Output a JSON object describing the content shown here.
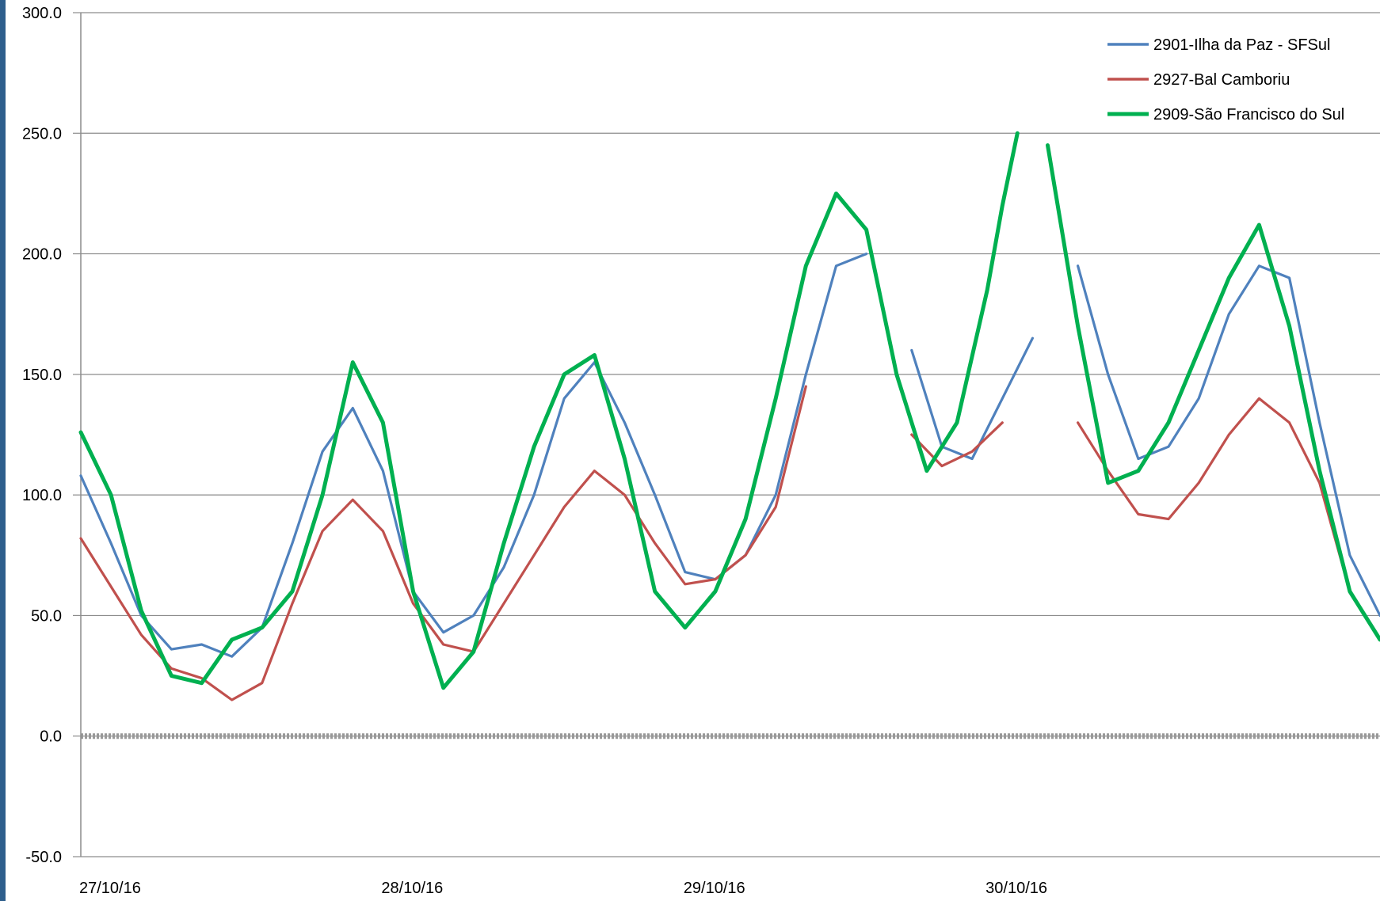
{
  "chart_data": {
    "type": "line",
    "title": "",
    "xlabel": "",
    "ylabel": "",
    "ylim": [
      -50,
      300
    ],
    "yticks": [
      -50,
      0,
      50,
      100,
      150,
      200,
      250,
      300
    ],
    "ytick_labels": [
      "-50.0",
      "0.0",
      "50.0",
      "100.0",
      "150.0",
      "200.0",
      "250.0",
      "300.0"
    ],
    "xlim": [
      0,
      4.3
    ],
    "xtick_labels": [
      "27/10/16",
      "28/10/16",
      "29/10/16",
      "30/10/16"
    ],
    "x_unit": "days from 27/10/16 00:00",
    "grid": true,
    "legend_position": "top-right",
    "reference_line": {
      "y": 0,
      "style": "dashed",
      "color": "#999999"
    },
    "series": [
      {
        "name": "2901-Ilha da Paz - SFSul",
        "color": "#4f81bd",
        "points": [
          [
            0.0,
            108
          ],
          [
            0.1,
            80
          ],
          [
            0.2,
            50
          ],
          [
            0.3,
            36
          ],
          [
            0.4,
            38
          ],
          [
            0.5,
            33
          ],
          [
            0.6,
            45
          ],
          [
            0.7,
            80
          ],
          [
            0.8,
            118
          ],
          [
            0.9,
            136
          ],
          [
            1.0,
            110
          ],
          [
            1.1,
            60
          ],
          [
            1.2,
            43
          ],
          [
            1.3,
            50
          ],
          [
            1.4,
            70
          ],
          [
            1.5,
            100
          ],
          [
            1.6,
            140
          ],
          [
            1.7,
            155
          ],
          [
            1.8,
            130
          ],
          [
            1.9,
            100
          ],
          [
            2.0,
            68
          ],
          [
            2.1,
            65
          ],
          [
            2.2,
            75
          ],
          [
            2.3,
            100
          ],
          [
            2.4,
            150
          ],
          [
            2.5,
            195
          ],
          [
            2.6,
            200
          ],
          [
            2.65,
            null
          ],
          [
            2.75,
            160
          ],
          [
            2.85,
            120
          ],
          [
            2.95,
            115
          ],
          [
            3.05,
            140
          ],
          [
            3.15,
            165
          ],
          [
            3.25,
            null
          ],
          [
            3.3,
            195
          ],
          [
            3.4,
            150
          ],
          [
            3.5,
            115
          ],
          [
            3.6,
            120
          ],
          [
            3.7,
            140
          ],
          [
            3.8,
            175
          ],
          [
            3.9,
            195
          ],
          [
            4.0,
            190
          ],
          [
            4.1,
            130
          ],
          [
            4.2,
            75
          ],
          [
            4.3,
            50
          ]
        ]
      },
      {
        "name": "2927-Bal Camboriu",
        "color": "#c0504d",
        "points": [
          [
            0.0,
            82
          ],
          [
            0.1,
            62
          ],
          [
            0.2,
            42
          ],
          [
            0.3,
            28
          ],
          [
            0.4,
            24
          ],
          [
            0.5,
            15
          ],
          [
            0.6,
            22
          ],
          [
            0.7,
            55
          ],
          [
            0.8,
            85
          ],
          [
            0.9,
            98
          ],
          [
            1.0,
            85
          ],
          [
            1.1,
            55
          ],
          [
            1.2,
            38
          ],
          [
            1.3,
            35
          ],
          [
            1.4,
            55
          ],
          [
            1.5,
            75
          ],
          [
            1.6,
            95
          ],
          [
            1.7,
            110
          ],
          [
            1.8,
            100
          ],
          [
            1.9,
            80
          ],
          [
            2.0,
            63
          ],
          [
            2.1,
            65
          ],
          [
            2.2,
            75
          ],
          [
            2.3,
            95
          ],
          [
            2.4,
            145
          ],
          [
            2.45,
            null
          ],
          [
            2.75,
            125
          ],
          [
            2.85,
            112
          ],
          [
            2.95,
            118
          ],
          [
            3.05,
            130
          ],
          [
            3.1,
            null
          ],
          [
            3.25,
            null
          ],
          [
            3.3,
            130
          ],
          [
            3.4,
            110
          ],
          [
            3.5,
            92
          ],
          [
            3.6,
            90
          ],
          [
            3.7,
            105
          ],
          [
            3.8,
            125
          ],
          [
            3.9,
            140
          ],
          [
            4.0,
            130
          ],
          [
            4.1,
            105
          ],
          [
            4.2,
            60
          ],
          [
            4.3,
            40
          ]
        ]
      },
      {
        "name": "2909-São Francisco do Sul",
        "color": "#00b050",
        "points": [
          [
            0.0,
            126
          ],
          [
            0.1,
            100
          ],
          [
            0.2,
            52
          ],
          [
            0.3,
            25
          ],
          [
            0.4,
            22
          ],
          [
            0.5,
            40
          ],
          [
            0.6,
            45
          ],
          [
            0.7,
            60
          ],
          [
            0.8,
            100
          ],
          [
            0.9,
            155
          ],
          [
            1.0,
            130
          ],
          [
            1.1,
            60
          ],
          [
            1.2,
            20
          ],
          [
            1.3,
            35
          ],
          [
            1.4,
            80
          ],
          [
            1.5,
            120
          ],
          [
            1.6,
            150
          ],
          [
            1.7,
            158
          ],
          [
            1.8,
            115
          ],
          [
            1.9,
            60
          ],
          [
            2.0,
            45
          ],
          [
            2.1,
            60
          ],
          [
            2.2,
            90
          ],
          [
            2.3,
            140
          ],
          [
            2.4,
            195
          ],
          [
            2.5,
            225
          ],
          [
            2.6,
            210
          ],
          [
            2.7,
            150
          ],
          [
            2.8,
            110
          ],
          [
            2.9,
            130
          ],
          [
            3.0,
            185
          ],
          [
            3.05,
            220
          ],
          [
            3.1,
            250
          ],
          [
            3.15,
            null
          ],
          [
            3.2,
            245
          ],
          [
            3.3,
            170
          ],
          [
            3.4,
            105
          ],
          [
            3.5,
            110
          ],
          [
            3.6,
            130
          ],
          [
            3.7,
            160
          ],
          [
            3.8,
            190
          ],
          [
            3.9,
            212
          ],
          [
            4.0,
            170
          ],
          [
            4.1,
            110
          ],
          [
            4.2,
            60
          ],
          [
            4.3,
            40
          ]
        ]
      }
    ]
  }
}
